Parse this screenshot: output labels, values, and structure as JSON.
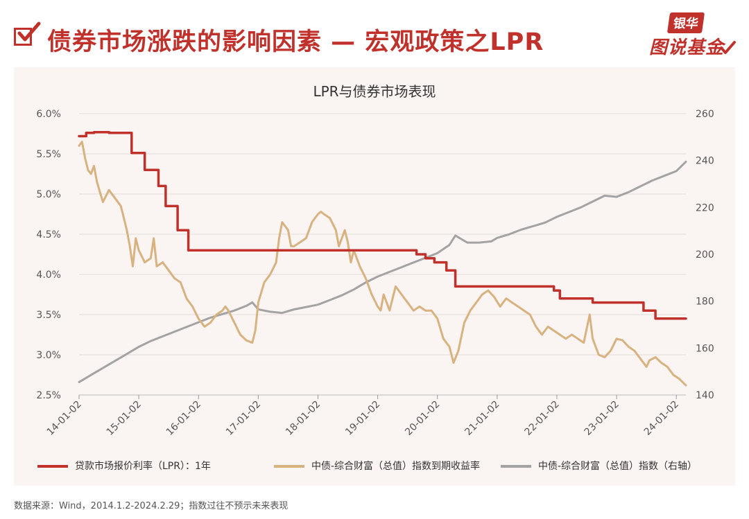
{
  "page": {
    "title": "债券市场涨跌的影响因素 — 宏观政策之LPR",
    "brand_top": "银华",
    "brand_bottom": "图说基金",
    "footnote": "数据来源：Wind，2014.1.2-2024.2.29；指数过往不预示未来表现"
  },
  "colors": {
    "accent": "#c0312b",
    "lpr": "#c0312b",
    "yield": "#d8b27f",
    "index": "#a3a3a3",
    "panel_bg": "#faf4f2"
  },
  "icons": [
    "checkbox-icon",
    "brand-check-icon"
  ],
  "chart_data": {
    "type": "line",
    "title": "LPR与债券市场表现",
    "x_tick_labels": [
      "14-01-02",
      "15-01-02",
      "16-01-02",
      "17-01-02",
      "18-01-02",
      "19-01-02",
      "20-01-02",
      "21-01-02",
      "22-01-02",
      "23-01-02",
      "24-01-02"
    ],
    "x_range": [
      2014.0,
      2024.16
    ],
    "y_left": {
      "range": [
        2.5,
        6.0
      ],
      "ticks": [
        2.5,
        3.0,
        3.5,
        4.0,
        4.5,
        5.0,
        5.5,
        6.0
      ],
      "tick_labels": [
        "2.5%",
        "3.0%",
        "3.5%",
        "4.0%",
        "4.5%",
        "5.0%",
        "5.5%",
        "6.0%"
      ]
    },
    "y_right": {
      "range": [
        140,
        260
      ],
      "ticks": [
        140,
        160,
        180,
        200,
        220,
        240,
        260
      ],
      "tick_labels": [
        "140",
        "160",
        "180",
        "200",
        "220",
        "240",
        "260"
      ]
    },
    "grid": "horizontal",
    "legend_position": "bottom",
    "series": [
      {
        "name": "贷款市场报价利率（LPR）：1年",
        "axis": "left",
        "color": "#c0312b",
        "style": "step",
        "points": [
          [
            2014.0,
            5.72
          ],
          [
            2014.12,
            5.72
          ],
          [
            2014.12,
            5.76
          ],
          [
            2014.25,
            5.76
          ],
          [
            2014.25,
            5.77
          ],
          [
            2014.5,
            5.77
          ],
          [
            2014.5,
            5.76
          ],
          [
            2014.88,
            5.76
          ],
          [
            2014.88,
            5.51
          ],
          [
            2015.1,
            5.51
          ],
          [
            2015.1,
            5.3
          ],
          [
            2015.33,
            5.3
          ],
          [
            2015.33,
            5.1
          ],
          [
            2015.45,
            5.1
          ],
          [
            2015.45,
            4.85
          ],
          [
            2015.65,
            4.85
          ],
          [
            2015.65,
            4.55
          ],
          [
            2015.83,
            4.55
          ],
          [
            2015.83,
            4.3
          ],
          [
            2019.65,
            4.3
          ],
          [
            2019.65,
            4.25
          ],
          [
            2019.8,
            4.25
          ],
          [
            2019.8,
            4.2
          ],
          [
            2019.95,
            4.2
          ],
          [
            2019.95,
            4.15
          ],
          [
            2020.15,
            4.15
          ],
          [
            2020.15,
            4.05
          ],
          [
            2020.3,
            4.05
          ],
          [
            2020.3,
            3.85
          ],
          [
            2021.95,
            3.85
          ],
          [
            2021.95,
            3.8
          ],
          [
            2022.05,
            3.8
          ],
          [
            2022.05,
            3.7
          ],
          [
            2022.6,
            3.7
          ],
          [
            2022.6,
            3.65
          ],
          [
            2023.45,
            3.65
          ],
          [
            2023.45,
            3.55
          ],
          [
            2023.65,
            3.55
          ],
          [
            2023.65,
            3.45
          ],
          [
            2024.16,
            3.45
          ]
        ]
      },
      {
        "name": "中债-综合财富（总值）指数到期收益率",
        "axis": "left",
        "color": "#d8b27f",
        "style": "line",
        "points": [
          [
            2014.0,
            5.6
          ],
          [
            2014.05,
            5.65
          ],
          [
            2014.1,
            5.45
          ],
          [
            2014.15,
            5.3
          ],
          [
            2014.2,
            5.25
          ],
          [
            2014.25,
            5.35
          ],
          [
            2014.3,
            5.15
          ],
          [
            2014.4,
            4.9
          ],
          [
            2014.5,
            5.05
          ],
          [
            2014.6,
            4.95
          ],
          [
            2014.7,
            4.85
          ],
          [
            2014.8,
            4.55
          ],
          [
            2014.85,
            4.35
          ],
          [
            2014.9,
            4.1
          ],
          [
            2014.95,
            4.45
          ],
          [
            2015.0,
            4.3
          ],
          [
            2015.1,
            4.15
          ],
          [
            2015.2,
            4.2
          ],
          [
            2015.25,
            4.45
          ],
          [
            2015.3,
            4.1
          ],
          [
            2015.4,
            4.15
          ],
          [
            2015.5,
            4.05
          ],
          [
            2015.6,
            3.95
          ],
          [
            2015.7,
            3.9
          ],
          [
            2015.8,
            3.7
          ],
          [
            2015.9,
            3.6
          ],
          [
            2016.0,
            3.45
          ],
          [
            2016.1,
            3.35
          ],
          [
            2016.2,
            3.4
          ],
          [
            2016.3,
            3.5
          ],
          [
            2016.4,
            3.55
          ],
          [
            2016.45,
            3.6
          ],
          [
            2016.5,
            3.55
          ],
          [
            2016.6,
            3.4
          ],
          [
            2016.7,
            3.25
          ],
          [
            2016.8,
            3.18
          ],
          [
            2016.9,
            3.15
          ],
          [
            2016.95,
            3.3
          ],
          [
            2017.0,
            3.65
          ],
          [
            2017.1,
            3.9
          ],
          [
            2017.2,
            4.0
          ],
          [
            2017.3,
            4.15
          ],
          [
            2017.35,
            4.45
          ],
          [
            2017.4,
            4.65
          ],
          [
            2017.5,
            4.55
          ],
          [
            2017.55,
            4.35
          ],
          [
            2017.6,
            4.35
          ],
          [
            2017.7,
            4.4
          ],
          [
            2017.8,
            4.45
          ],
          [
            2017.9,
            4.65
          ],
          [
            2018.0,
            4.75
          ],
          [
            2018.05,
            4.78
          ],
          [
            2018.1,
            4.75
          ],
          [
            2018.2,
            4.7
          ],
          [
            2018.3,
            4.55
          ],
          [
            2018.35,
            4.35
          ],
          [
            2018.45,
            4.55
          ],
          [
            2018.5,
            4.4
          ],
          [
            2018.55,
            4.15
          ],
          [
            2018.6,
            4.3
          ],
          [
            2018.7,
            4.1
          ],
          [
            2018.8,
            3.95
          ],
          [
            2018.9,
            3.75
          ],
          [
            2019.0,
            3.6
          ],
          [
            2019.05,
            3.55
          ],
          [
            2019.1,
            3.75
          ],
          [
            2019.2,
            3.55
          ],
          [
            2019.3,
            3.85
          ],
          [
            2019.4,
            3.75
          ],
          [
            2019.5,
            3.65
          ],
          [
            2019.6,
            3.55
          ],
          [
            2019.7,
            3.6
          ],
          [
            2019.8,
            3.55
          ],
          [
            2019.9,
            3.55
          ],
          [
            2020.0,
            3.45
          ],
          [
            2020.1,
            3.2
          ],
          [
            2020.2,
            3.1
          ],
          [
            2020.27,
            2.9
          ],
          [
            2020.35,
            3.05
          ],
          [
            2020.45,
            3.4
          ],
          [
            2020.55,
            3.55
          ],
          [
            2020.65,
            3.65
          ],
          [
            2020.75,
            3.75
          ],
          [
            2020.85,
            3.8
          ],
          [
            2020.95,
            3.72
          ],
          [
            2021.05,
            3.6
          ],
          [
            2021.15,
            3.7
          ],
          [
            2021.25,
            3.65
          ],
          [
            2021.35,
            3.6
          ],
          [
            2021.45,
            3.55
          ],
          [
            2021.55,
            3.5
          ],
          [
            2021.65,
            3.35
          ],
          [
            2021.75,
            3.25
          ],
          [
            2021.85,
            3.35
          ],
          [
            2021.95,
            3.3
          ],
          [
            2022.05,
            3.25
          ],
          [
            2022.15,
            3.2
          ],
          [
            2022.25,
            3.25
          ],
          [
            2022.35,
            3.2
          ],
          [
            2022.45,
            3.15
          ],
          [
            2022.55,
            3.5
          ],
          [
            2022.6,
            3.2
          ],
          [
            2022.7,
            3.0
          ],
          [
            2022.8,
            2.97
          ],
          [
            2022.9,
            3.05
          ],
          [
            2023.0,
            3.2
          ],
          [
            2023.1,
            3.18
          ],
          [
            2023.2,
            3.1
          ],
          [
            2023.3,
            3.05
          ],
          [
            2023.4,
            2.95
          ],
          [
            2023.5,
            2.85
          ],
          [
            2023.55,
            2.93
          ],
          [
            2023.65,
            2.97
          ],
          [
            2023.75,
            2.9
          ],
          [
            2023.85,
            2.85
          ],
          [
            2023.95,
            2.75
          ],
          [
            2024.05,
            2.7
          ],
          [
            2024.16,
            2.62
          ]
        ]
      },
      {
        "name": "中债-综合财富（总值）指数（右轴）",
        "axis": "right",
        "color": "#a3a3a3",
        "style": "line",
        "points": [
          [
            2014.0,
            145.5
          ],
          [
            2014.2,
            148.5
          ],
          [
            2014.4,
            151.5
          ],
          [
            2014.6,
            154.5
          ],
          [
            2014.8,
            157.5
          ],
          [
            2015.0,
            160.5
          ],
          [
            2015.2,
            163
          ],
          [
            2015.4,
            165
          ],
          [
            2015.6,
            167
          ],
          [
            2015.8,
            169
          ],
          [
            2016.0,
            171
          ],
          [
            2016.2,
            173
          ],
          [
            2016.4,
            174.5
          ],
          [
            2016.6,
            176
          ],
          [
            2016.8,
            178
          ],
          [
            2016.9,
            179.5
          ],
          [
            2017.0,
            176.5
          ],
          [
            2017.2,
            175.5
          ],
          [
            2017.4,
            175
          ],
          [
            2017.6,
            176.5
          ],
          [
            2017.8,
            177.5
          ],
          [
            2018.0,
            178.5
          ],
          [
            2018.2,
            180.5
          ],
          [
            2018.4,
            182.5
          ],
          [
            2018.6,
            185
          ],
          [
            2018.8,
            188
          ],
          [
            2019.0,
            190.5
          ],
          [
            2019.2,
            192.5
          ],
          [
            2019.4,
            194.5
          ],
          [
            2019.6,
            196.5
          ],
          [
            2019.8,
            198.5
          ],
          [
            2020.0,
            200.5
          ],
          [
            2020.2,
            204
          ],
          [
            2020.3,
            208
          ],
          [
            2020.4,
            206.5
          ],
          [
            2020.5,
            205
          ],
          [
            2020.7,
            205
          ],
          [
            2020.9,
            205.5
          ],
          [
            2021.0,
            207
          ],
          [
            2021.2,
            208.5
          ],
          [
            2021.4,
            210.5
          ],
          [
            2021.6,
            212
          ],
          [
            2021.8,
            213.5
          ],
          [
            2022.0,
            216
          ],
          [
            2022.2,
            218
          ],
          [
            2022.4,
            220
          ],
          [
            2022.6,
            222.5
          ],
          [
            2022.8,
            225
          ],
          [
            2023.0,
            224.5
          ],
          [
            2023.2,
            226.5
          ],
          [
            2023.4,
            229
          ],
          [
            2023.6,
            231.5
          ],
          [
            2023.8,
            233.5
          ],
          [
            2024.0,
            235.5
          ],
          [
            2024.16,
            239.5
          ]
        ]
      }
    ]
  }
}
